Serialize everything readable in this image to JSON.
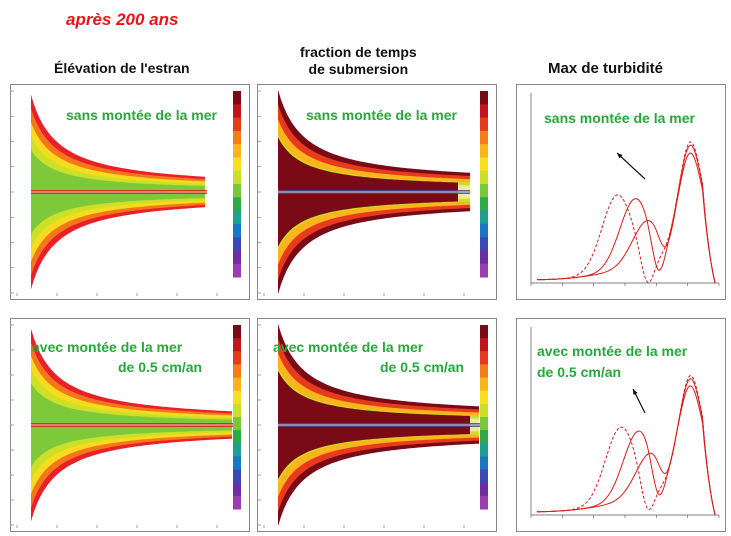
{
  "title": "après 200 ans",
  "columns": [
    {
      "heading": "Élévation de l'estran"
    },
    {
      "heading_line1": "fraction de temps",
      "heading_line2": "de submersion"
    },
    {
      "heading": "Max de turbidité"
    }
  ],
  "scenarios": {
    "no_rise": {
      "label": "sans montée de la mer"
    },
    "with_rise": {
      "label_line1": "avec montée de la mer",
      "label_line2": "de 0.5 cm/an"
    }
  },
  "colors": {
    "title": "#e8141b",
    "label": "#27a83a",
    "curve": "#d81c1c",
    "colorbar": [
      "#7a0a16",
      "#c3141c",
      "#e83a1c",
      "#f57c1a",
      "#fbb51c",
      "#f7e01c",
      "#c9df2a",
      "#79c73a",
      "#2fa84a",
      "#1f9f90",
      "#1a78c2",
      "#3a49b6",
      "#6a2e9e",
      "#9a3db0"
    ]
  },
  "icons": {
    "trend_arrow": "arrow-up-left-icon"
  }
}
